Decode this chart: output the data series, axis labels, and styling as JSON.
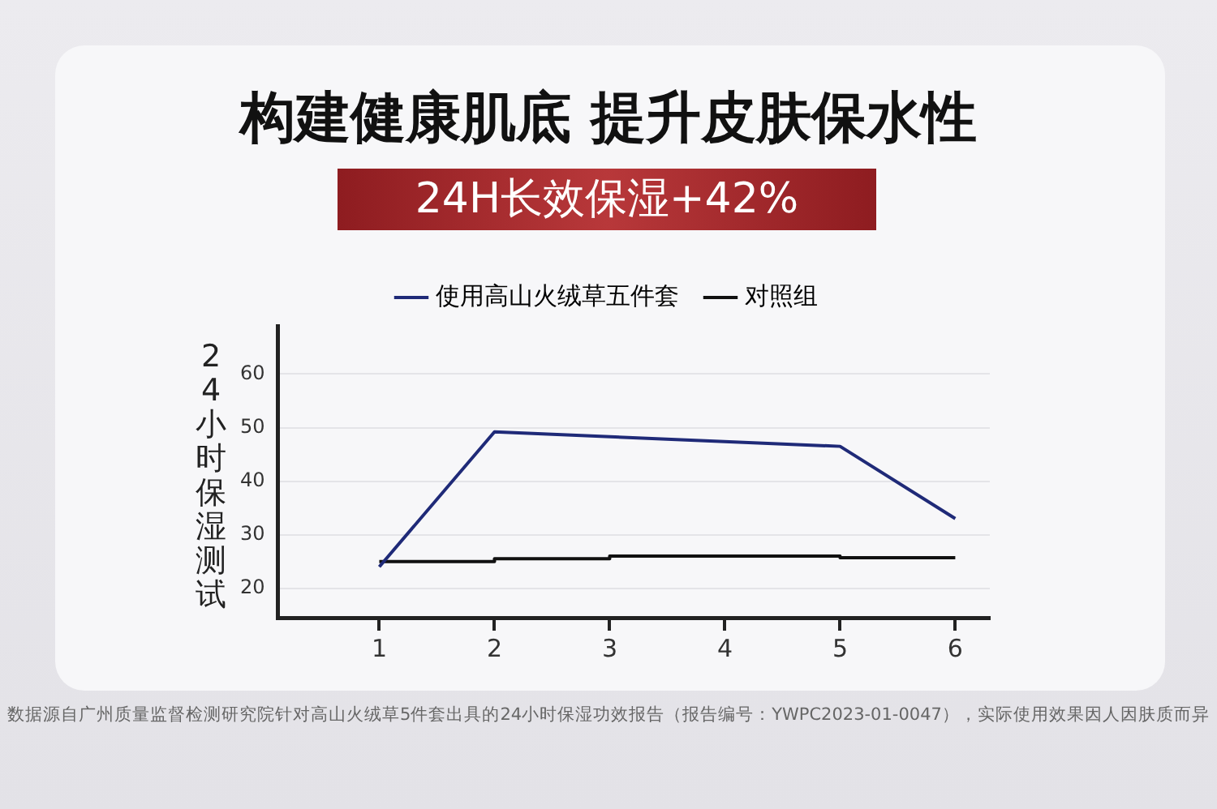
{
  "chart_data": {
    "type": "line",
    "title": "构建健康肌底 提升皮肤保水性",
    "subtitle": "24H长效保湿+42%",
    "ylabel": "24小时保湿测试",
    "xlim": [
      0.12,
      6.3
    ],
    "xticks": [
      1,
      2,
      3,
      4,
      5,
      6
    ],
    "ylim": [
      14.5,
      69
    ],
    "yticks": [
      20,
      30,
      40,
      50,
      60
    ],
    "grid": "y",
    "legend": "top",
    "marker": "none",
    "series": [
      {
        "name": "使用高山火绒草五件套",
        "color": "#1f2a78",
        "x": [
          1,
          2,
          5,
          6
        ],
        "values": [
          24,
          49.2,
          46.5,
          33
        ]
      },
      {
        "name": "对照组",
        "color": "#111111",
        "type": "step",
        "x": [
          1,
          2,
          3,
          4,
          5,
          6
        ],
        "values": [
          25,
          25.5,
          26,
          26,
          25.7,
          25.7
        ]
      }
    ],
    "annotations": [
      "数据源自广州质量监督检测研究院针对高山火绒草5件套出具的24小时保湿功效报告（报告编号：YWPC2023-01-0047），实际使用效果因人因肤质而异"
    ]
  }
}
